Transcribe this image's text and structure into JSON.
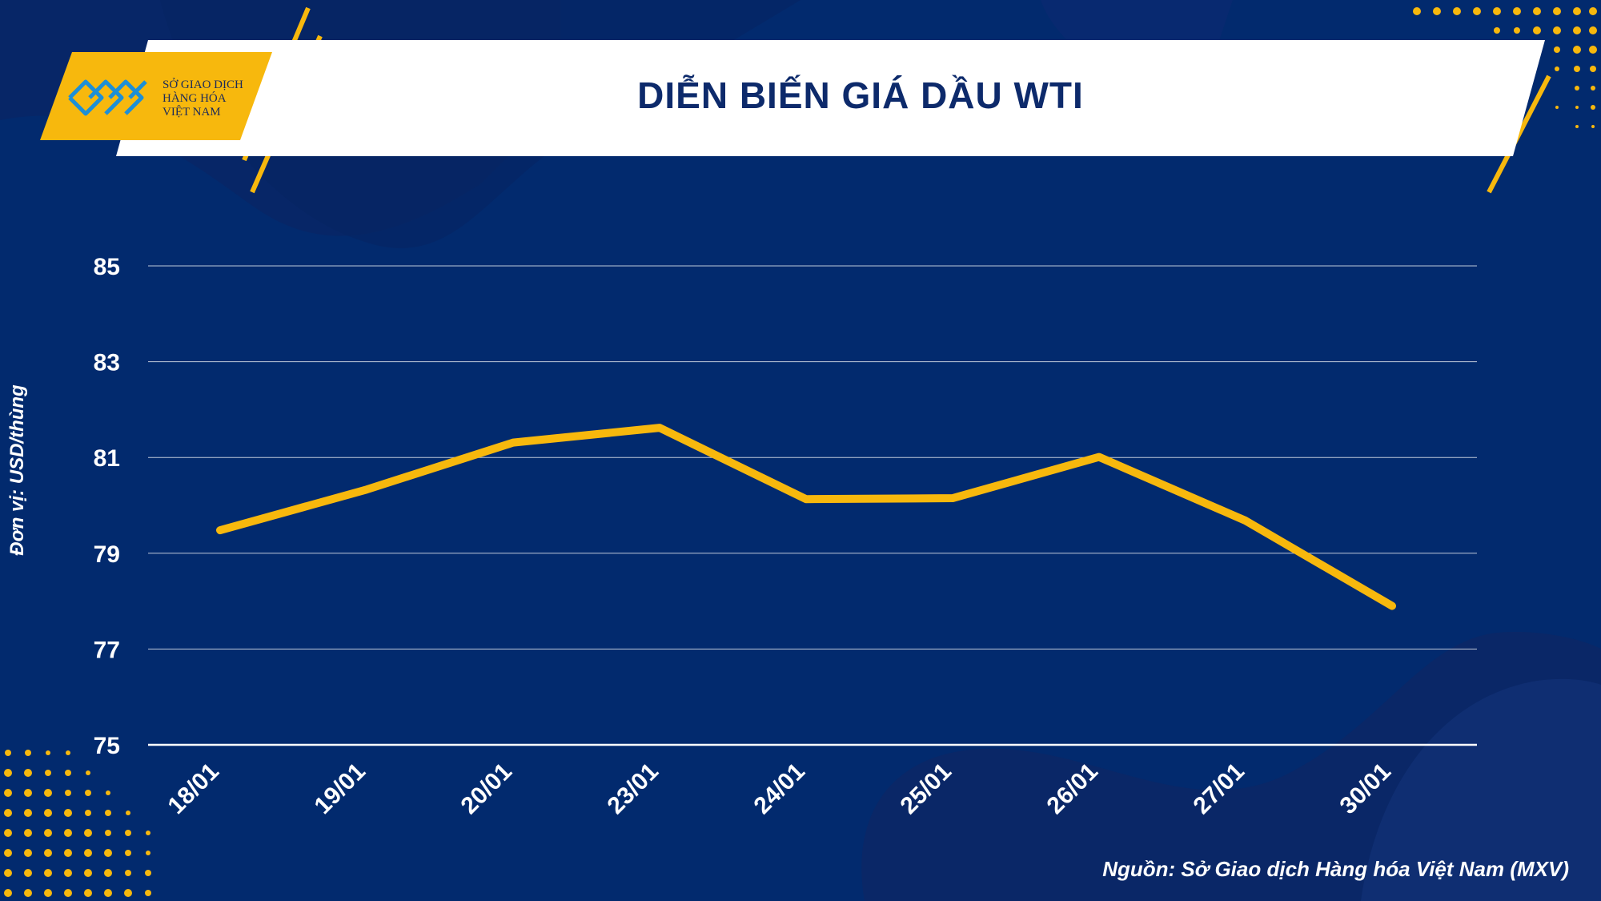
{
  "header": {
    "title": "DIỄN BIẾN GIÁ DẦU WTI",
    "logo_lines": [
      "SỞ GIAO DỊCH",
      "HÀNG HÓA",
      "VIỆT NAM"
    ]
  },
  "footer": {
    "source": "Nguồn: Sở Giao dịch Hàng hóa Việt Nam (MXV)"
  },
  "colors": {
    "background": "#022a6e",
    "accent": "#f7b80d",
    "line": "#f7b80d",
    "text": "#ffffff",
    "title": "#0d2a6b"
  },
  "chart_data": {
    "type": "line",
    "title": "DIỄN BIẾN GIÁ DẦU WTI",
    "xlabel": "",
    "ylabel": "Đơn vị: USD/thùng",
    "categories": [
      "18/01",
      "19/01",
      "20/01",
      "23/01",
      "24/01",
      "25/01",
      "26/01",
      "27/01",
      "30/01"
    ],
    "series": [
      {
        "values": [
          79.48,
          80.33,
          81.31,
          81.62,
          80.13,
          80.15,
          81.01,
          79.68,
          77.9
        ]
      }
    ],
    "yticks": [
      75,
      77,
      79,
      81,
      83,
      85
    ],
    "ylim": [
      75,
      85
    ],
    "grid": true,
    "legend": "none"
  }
}
